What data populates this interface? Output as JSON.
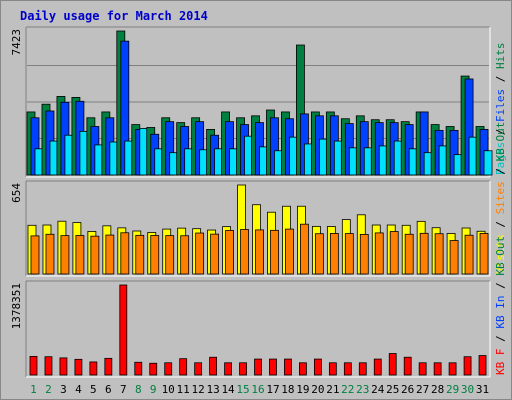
{
  "title": "Daily usage for March 2014",
  "chart_data": [
    {
      "type": "bar",
      "panel": "top",
      "categories": [
        "1",
        "2",
        "3",
        "4",
        "5",
        "6",
        "7",
        "8",
        "9",
        "10",
        "11",
        "12",
        "13",
        "14",
        "15",
        "16",
        "17",
        "18",
        "19",
        "20",
        "21",
        "22",
        "23",
        "24",
        "25",
        "26",
        "27",
        "28",
        "29",
        "30",
        "31"
      ],
      "ymax_label": "7423",
      "ylim": [
        0,
        7423
      ],
      "legend": {
        "parts": [
          "Pages",
          "Files",
          "Hits"
        ],
        "sep": " / "
      },
      "series": [
        {
          "name": "Hits",
          "color": "#008040",
          "values": [
            3250,
            3650,
            4050,
            4000,
            2950,
            3250,
            7423,
            2600,
            2450,
            2950,
            2700,
            2950,
            2350,
            3250,
            2950,
            3050,
            3350,
            3250,
            6700,
            3250,
            3250,
            2900,
            3050,
            2850,
            2850,
            2750,
            3250,
            2600,
            2500,
            5100,
            2500
          ]
        },
        {
          "name": "Files",
          "color": "#0040ff",
          "values": [
            2950,
            3300,
            3750,
            3800,
            2500,
            2950,
            6900,
            2350,
            2100,
            2750,
            2500,
            2750,
            2050,
            2750,
            2600,
            2700,
            2950,
            2900,
            3150,
            3050,
            3050,
            2650,
            2750,
            2700,
            2700,
            2600,
            3250,
            2300,
            2300,
            4950,
            2350
          ]
        },
        {
          "name": "Pages",
          "color": "#00e0ff",
          "values": [
            1350,
            1750,
            2050,
            2250,
            1550,
            1700,
            1750,
            2400,
            1350,
            1150,
            1350,
            1300,
            1350,
            1350,
            2000,
            1450,
            1250,
            1950,
            1600,
            1850,
            1750,
            1400,
            1400,
            1500,
            1750,
            1350,
            1150,
            1500,
            1050,
            1950,
            1250
          ]
        }
      ]
    },
    {
      "type": "bar",
      "panel": "middle",
      "ymax_label": "654",
      "ylim": [
        0,
        654
      ],
      "legend": {
        "parts": [
          "Visits",
          "Sites",
          "KB Out"
        ],
        "sep": " / "
      },
      "series": [
        {
          "name": "Visits",
          "color": "#ffff00",
          "values": [
            358,
            360,
            388,
            378,
            313,
            354,
            339,
            316,
            305,
            330,
            337,
            333,
            323,
            348,
            654,
            509,
            454,
            498,
            498,
            350,
            349,
            400,
            435,
            360,
            360,
            358,
            387,
            340,
            298,
            338,
            314
          ]
        },
        {
          "name": "Sites",
          "color": "#ff8000",
          "values": [
            280,
            292,
            282,
            283,
            278,
            286,
            303,
            284,
            283,
            282,
            281,
            301,
            293,
            320,
            327,
            324,
            321,
            330,
            366,
            296,
            298,
            297,
            291,
            302,
            312,
            292,
            299,
            296,
            246,
            285,
            298
          ]
        }
      ]
    },
    {
      "type": "bar",
      "panel": "bottom",
      "ymax_label": "1378351",
      "ylim": [
        0,
        1378351
      ],
      "legend": {
        "parts": [
          "KB F",
          "KB In",
          "KB Out"
        ],
        "sep": " / "
      },
      "series": [
        {
          "name": "KB F",
          "color": "#ff0000",
          "values": [
            285000,
            280000,
            262000,
            240000,
            200000,
            255000,
            1378351,
            195000,
            180000,
            187000,
            250000,
            187000,
            272000,
            187000,
            187000,
            244000,
            244000,
            244000,
            187000,
            244000,
            187000,
            187000,
            187000,
            244000,
            329000,
            272000,
            187000,
            187000,
            187000,
            280000,
            298000
          ]
        }
      ]
    }
  ],
  "legend_colors": {
    "Pages": "#00c0c0",
    "Files": "#0040ff",
    "Hits": "#008040",
    "Visits": "#ffff00",
    "Sites": "#ff8000",
    "KB Out": "#008040",
    "KB F": "#ff0000",
    "KB In": "#0040ff",
    "sep": "#000000"
  },
  "weekend_days": [
    "1",
    "2",
    "8",
    "9",
    "15",
    "16",
    "22",
    "23",
    "29",
    "30"
  ],
  "weekend_color": "#008040",
  "weekday_color": "#000000"
}
